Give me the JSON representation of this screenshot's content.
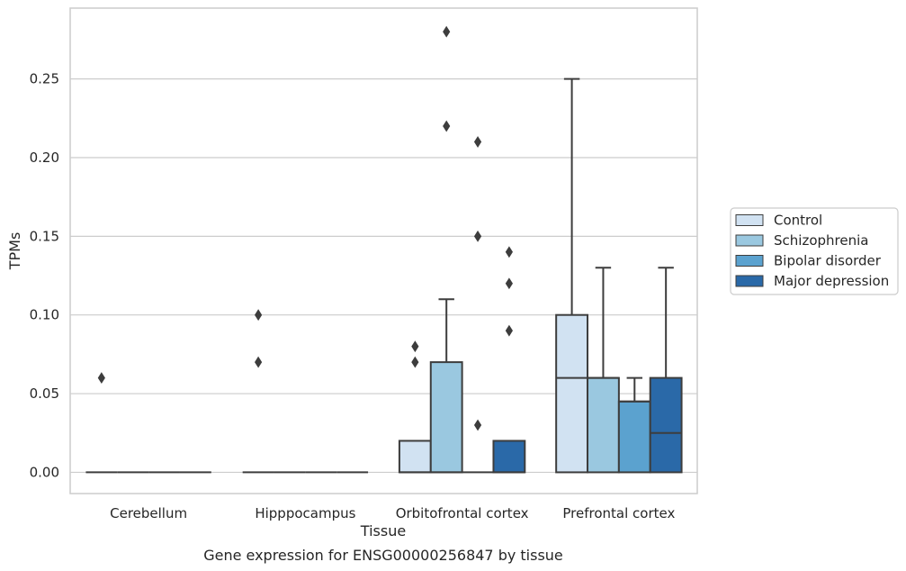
{
  "chart_data": {
    "type": "box",
    "title": "",
    "caption": "Gene expression for ENSG00000256847 by tissue",
    "xlabel": "Tissue",
    "ylabel": "TPMs",
    "ylim": [
      -0.0135,
      0.295
    ],
    "yticks": [
      0.0,
      0.05,
      0.1,
      0.15,
      0.2,
      0.25
    ],
    "ytick_labels": [
      "0.00",
      "0.05",
      "0.10",
      "0.15",
      "0.20",
      "0.25"
    ],
    "grid": "horizontal",
    "legend_position": "right",
    "categories": [
      "Cerebellum",
      "Hipppocampus",
      "Orbitofrontal cortex",
      "Prefrontal cortex"
    ],
    "series": [
      {
        "name": "Control",
        "color": "#d1e2f2",
        "boxes": [
          {
            "q1": 0.0,
            "median": 0.0,
            "q3": 0.0,
            "whisker_low": 0.0,
            "whisker_high": 0.0,
            "outliers": [
              0.06
            ]
          },
          {
            "q1": 0.0,
            "median": 0.0,
            "q3": 0.0,
            "whisker_low": 0.0,
            "whisker_high": 0.0,
            "outliers": [
              0.07,
              0.1
            ]
          },
          {
            "q1": 0.0,
            "median": 0.0,
            "q3": 0.02,
            "whisker_low": 0.0,
            "whisker_high": 0.02,
            "outliers": [
              0.07,
              0.08
            ]
          },
          {
            "q1": 0.0,
            "median": 0.06,
            "q3": 0.1,
            "whisker_low": 0.0,
            "whisker_high": 0.25,
            "outliers": []
          }
        ]
      },
      {
        "name": "Schizophrenia",
        "color": "#9ac8e0",
        "boxes": [
          {
            "q1": 0.0,
            "median": 0.0,
            "q3": 0.0,
            "whisker_low": 0.0,
            "whisker_high": 0.0,
            "outliers": []
          },
          {
            "q1": 0.0,
            "median": 0.0,
            "q3": 0.0,
            "whisker_low": 0.0,
            "whisker_high": 0.0,
            "outliers": []
          },
          {
            "q1": 0.0,
            "median": 0.0,
            "q3": 0.07,
            "whisker_low": 0.0,
            "whisker_high": 0.11,
            "outliers": [
              0.22,
              0.28
            ]
          },
          {
            "q1": 0.0,
            "median": 0.06,
            "q3": 0.06,
            "whisker_low": 0.0,
            "whisker_high": 0.13,
            "outliers": []
          }
        ]
      },
      {
        "name": "Bipolar disorder",
        "color": "#5ba2cf",
        "boxes": [
          {
            "q1": 0.0,
            "median": 0.0,
            "q3": 0.0,
            "whisker_low": 0.0,
            "whisker_high": 0.0,
            "outliers": []
          },
          {
            "q1": 0.0,
            "median": 0.0,
            "q3": 0.0,
            "whisker_low": 0.0,
            "whisker_high": 0.0,
            "outliers": []
          },
          {
            "q1": 0.0,
            "median": 0.0,
            "q3": 0.0,
            "whisker_low": 0.0,
            "whisker_high": 0.0,
            "outliers": [
              0.03,
              0.15,
              0.21
            ]
          },
          {
            "q1": 0.0,
            "median": 0.045,
            "q3": 0.045,
            "whisker_low": 0.0,
            "whisker_high": 0.06,
            "outliers": []
          }
        ]
      },
      {
        "name": "Major depression",
        "color": "#2a69a8",
        "boxes": [
          {
            "q1": 0.0,
            "median": 0.0,
            "q3": 0.0,
            "whisker_low": 0.0,
            "whisker_high": 0.0,
            "outliers": []
          },
          {
            "q1": 0.0,
            "median": 0.0,
            "q3": 0.0,
            "whisker_low": 0.0,
            "whisker_high": 0.0,
            "outliers": []
          },
          {
            "q1": 0.0,
            "median": 0.0,
            "q3": 0.02,
            "whisker_low": 0.0,
            "whisker_high": 0.02,
            "outliers": [
              0.09,
              0.12,
              0.14
            ]
          },
          {
            "q1": 0.0,
            "median": 0.025,
            "q3": 0.06,
            "whisker_low": 0.0,
            "whisker_high": 0.13,
            "outliers": []
          }
        ]
      }
    ],
    "colors": {
      "grid": "#cccccc",
      "frame": "#cccccc",
      "box_edge": "#3d3d3d",
      "text": "#262626"
    }
  }
}
